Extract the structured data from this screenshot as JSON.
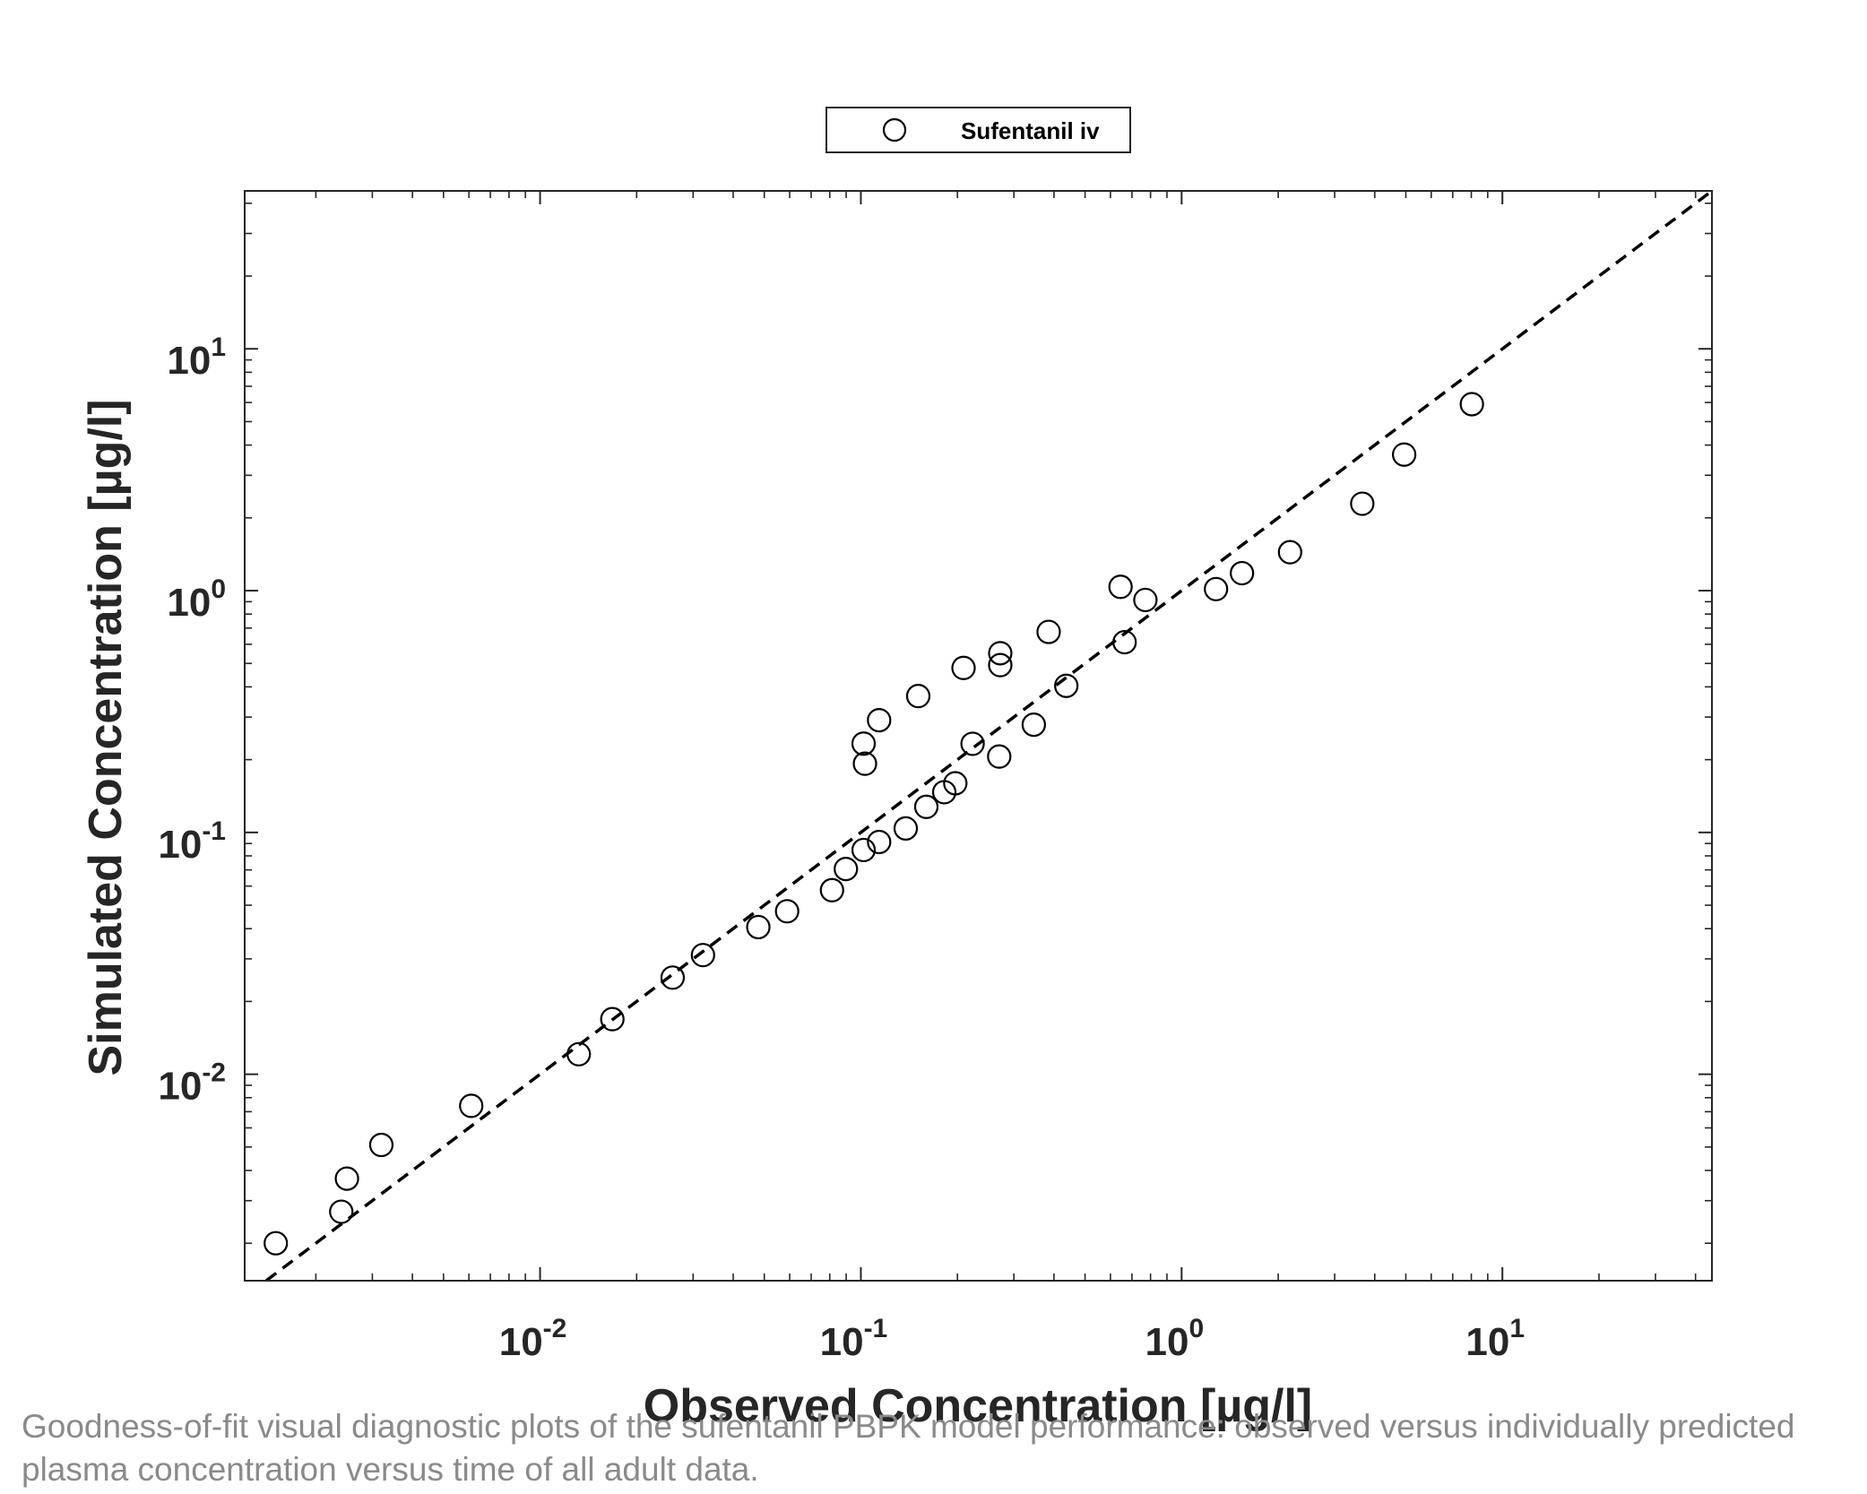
{
  "chart_data": {
    "type": "scatter",
    "xlabel": "Observed Concentration [µg/l]",
    "ylabel": "Simulated Concentration [µg/l]",
    "xscale": "log",
    "yscale": "log",
    "xlim": [
      0.0012,
      45
    ],
    "ylim": [
      0.0014,
      45
    ],
    "xticks": [
      {
        "value": 0.01,
        "base": "10",
        "exp": "-2"
      },
      {
        "value": 0.1,
        "base": "10",
        "exp": "-1"
      },
      {
        "value": 1,
        "base": "10",
        "exp": "0"
      },
      {
        "value": 10,
        "base": "10",
        "exp": "1"
      }
    ],
    "yticks": [
      {
        "value": 0.01,
        "base": "10",
        "exp": "-2"
      },
      {
        "value": 0.1,
        "base": "10",
        "exp": "-1"
      },
      {
        "value": 1,
        "base": "10",
        "exp": "0"
      },
      {
        "value": 10,
        "base": "10",
        "exp": "1"
      }
    ],
    "grid": false,
    "legend_position": "top-center",
    "identity_line": {
      "style": "dashed",
      "color": "#000000"
    },
    "series": [
      {
        "name": "Sufentanil iv",
        "marker": "open-circle",
        "color": "#000000",
        "points": [
          [
            0.0015,
            0.002
          ],
          [
            0.0024,
            0.0027
          ],
          [
            0.0025,
            0.0037
          ],
          [
            0.0032,
            0.0051
          ],
          [
            0.0061,
            0.0074
          ],
          [
            0.0132,
            0.0121
          ],
          [
            0.0168,
            0.0169
          ],
          [
            0.0259,
            0.0251
          ],
          [
            0.0322,
            0.0311
          ],
          [
            0.0479,
            0.0406
          ],
          [
            0.0589,
            0.0472
          ],
          [
            0.0813,
            0.0577
          ],
          [
            0.0898,
            0.0706
          ],
          [
            0.102,
            0.0846
          ],
          [
            0.114,
            0.0913
          ],
          [
            0.138,
            0.1039
          ],
          [
            0.16,
            0.1276
          ],
          [
            0.182,
            0.1467
          ],
          [
            0.197,
            0.1597
          ],
          [
            0.209,
            0.479
          ],
          [
            0.223,
            0.2326
          ],
          [
            0.27,
            0.206
          ],
          [
            0.272,
            0.492
          ],
          [
            0.272,
            0.551
          ],
          [
            0.102,
            0.233
          ],
          [
            0.103,
            0.1924
          ],
          [
            0.114,
            0.2912
          ],
          [
            0.151,
            0.3665
          ],
          [
            0.346,
            0.279
          ],
          [
            0.385,
            0.675
          ],
          [
            0.437,
            0.404
          ],
          [
            0.645,
            1.037
          ],
          [
            0.664,
            0.612
          ],
          [
            0.771,
            0.915
          ],
          [
            1.28,
            1.015
          ],
          [
            1.542,
            1.181
          ],
          [
            2.178,
            1.442
          ],
          [
            3.657,
            2.288
          ],
          [
            4.94,
            3.653
          ],
          [
            8.032,
            5.904
          ]
        ]
      }
    ]
  },
  "caption": "Goodness-of-fit visual diagnostic plots of the sufentanil PBPK model performance: observed versus individually predicted plasma concentration versus time of all adult data."
}
